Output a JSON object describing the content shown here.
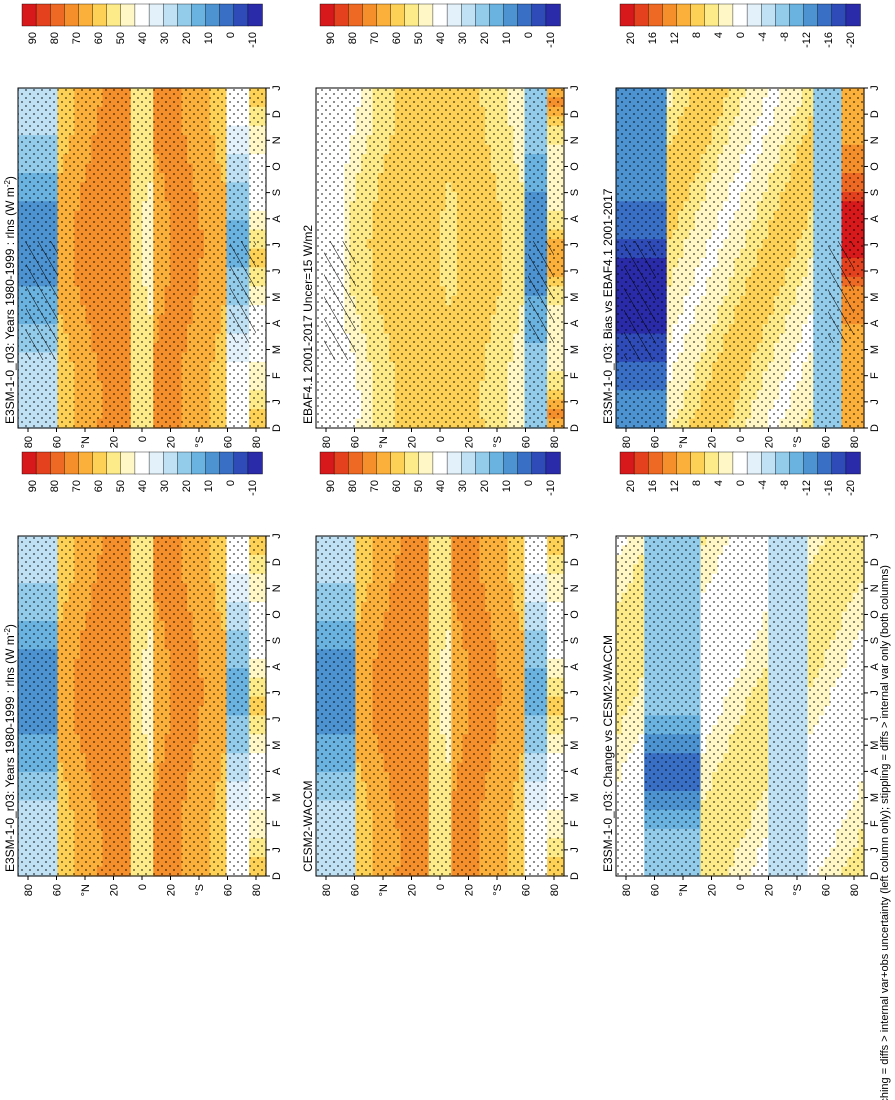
{
  "footer_note": "hatching = diffs > internal var+obs uncertainty (left column only); stippling = diffs > internal var only (both columns)",
  "chart_data": [
    {
      "type": "heatmap",
      "title": "E3SM-1-0_r03: Years 1980-1999 : rlns (W m-2)",
      "title_main": "E3SM-1-0_r03: Years 1980-1999 : rlns (W m",
      "title_sup": "-2",
      "title_end": ")",
      "x_ticks": [
        "D",
        "J",
        "F",
        "M",
        "A",
        "M",
        "J",
        "J",
        "A",
        "S",
        "O",
        "N",
        "D",
        "J"
      ],
      "y_ticks": [
        "80",
        "60",
        "°N",
        "20",
        "0",
        "20",
        "°S",
        "60",
        "80"
      ],
      "colorbar_ticks": [
        "90",
        "80",
        "70",
        "60",
        "50",
        "40",
        "30",
        "20",
        "10",
        "0",
        "-10"
      ],
      "colorbar_kind": "abs",
      "field": "model",
      "hatching": true
    },
    {
      "type": "heatmap",
      "title": "E3SM-1-0_r03: Years 1980-1999 : rlns (W m-2)",
      "title_main": "E3SM-1-0_r03: Years 1980-1999 : rlns (W m",
      "title_sup": "-2",
      "title_end": ")",
      "x_ticks": [
        "D",
        "J",
        "F",
        "M",
        "A",
        "M",
        "J",
        "J",
        "A",
        "S",
        "O",
        "N",
        "D",
        "J"
      ],
      "y_ticks": [
        "80",
        "60",
        "°N",
        "20",
        "0",
        "20",
        "°S",
        "60",
        "80"
      ],
      "colorbar_ticks": [
        "90",
        "80",
        "70",
        "60",
        "50",
        "40",
        "30",
        "20",
        "10",
        "0",
        "-10"
      ],
      "colorbar_kind": "abs",
      "field": "model",
      "hatching": false
    },
    {
      "type": "heatmap",
      "title": "EBAF4.1 2001-2017 Uncer=15 W/m2",
      "title_main": "EBAF4.1 2001-2017 Uncer=15 W/m2",
      "title_sup": "",
      "title_end": "",
      "x_ticks": [
        "D",
        "J",
        "F",
        "M",
        "A",
        "M",
        "J",
        "J",
        "A",
        "S",
        "O",
        "N",
        "D",
        "J"
      ],
      "y_ticks": [
        "80",
        "60",
        "°N",
        "20",
        "0",
        "20",
        "°S",
        "60",
        "80"
      ],
      "colorbar_ticks": [
        "90",
        "80",
        "70",
        "60",
        "50",
        "40",
        "30",
        "20",
        "10",
        "0",
        "-10"
      ],
      "colorbar_kind": "abs",
      "field": "obs",
      "hatching": true
    },
    {
      "type": "heatmap",
      "title": "CESM2-WACCM",
      "title_main": "CESM2-WACCM",
      "title_sup": "",
      "title_end": "",
      "x_ticks": [
        "D",
        "J",
        "F",
        "M",
        "A",
        "M",
        "J",
        "J",
        "A",
        "S",
        "O",
        "N",
        "D",
        "J"
      ],
      "y_ticks": [
        "80",
        "60",
        "°N",
        "20",
        "0",
        "20",
        "°S",
        "60",
        "80"
      ],
      "colorbar_ticks": [
        "90",
        "80",
        "70",
        "60",
        "50",
        "40",
        "30",
        "20",
        "10",
        "0",
        "-10"
      ],
      "colorbar_kind": "abs",
      "field": "model",
      "hatching": false
    },
    {
      "type": "heatmap",
      "title": "E3SM-1-0_r03: Bias vs EBAF4.1 2001-2017",
      "title_main": "E3SM-1-0_r03: Bias vs EBAF4.1 2001-2017",
      "title_sup": "",
      "title_end": "",
      "x_ticks": [
        "D",
        "J",
        "F",
        "M",
        "A",
        "M",
        "J",
        "J",
        "A",
        "S",
        "O",
        "N",
        "D",
        "J"
      ],
      "y_ticks": [
        "80",
        "60",
        "°N",
        "20",
        "0",
        "20",
        "°S",
        "60",
        "80"
      ],
      "colorbar_ticks": [
        "20",
        "16",
        "12",
        "8",
        "4",
        "0",
        "-4",
        "-8",
        "-12",
        "-16",
        "-20"
      ],
      "colorbar_kind": "diff",
      "field": "bias",
      "hatching": true
    },
    {
      "type": "heatmap",
      "title": "E3SM-1-0_r03: Change vs CESM2-WACCM",
      "title_main": "E3SM-1-0_r03: Change vs CESM2-WACCM",
      "title_sup": "",
      "title_end": "",
      "x_ticks": [
        "D",
        "J",
        "F",
        "M",
        "A",
        "M",
        "J",
        "J",
        "A",
        "S",
        "O",
        "N",
        "D",
        "J"
      ],
      "y_ticks": [
        "80",
        "60",
        "°N",
        "20",
        "0",
        "20",
        "°S",
        "60",
        "80"
      ],
      "colorbar_ticks": [
        "20",
        "16",
        "12",
        "8",
        "4",
        "0",
        "-4",
        "-8",
        "-12",
        "-16",
        "-20"
      ],
      "colorbar_kind": "diff",
      "field": "change",
      "hatching": false
    }
  ],
  "colors": {
    "abs_scale": [
      "#d7191c",
      "#e4411f",
      "#ee6a24",
      "#f58f2c",
      "#fbb03b",
      "#fdd155",
      "#fdeb8a",
      "#fff8c6",
      "#ffffff",
      "#e2f1fa",
      "#bfe1f3",
      "#93cbea",
      "#6ab2df",
      "#4d93d1",
      "#3a6fc6",
      "#2e4bb8",
      "#2a2ba8"
    ],
    "diff_scale": [
      "#d7191c",
      "#e4411f",
      "#ee6a24",
      "#f58f2c",
      "#fbb03b",
      "#fdd155",
      "#fdeb8a",
      "#fff8c6",
      "#ffffff",
      "#e2f1fa",
      "#bfe1f3",
      "#93cbea",
      "#6ab2df",
      "#4d93d1",
      "#3a6fc6",
      "#2e4bb8",
      "#2a2ba8"
    ]
  }
}
